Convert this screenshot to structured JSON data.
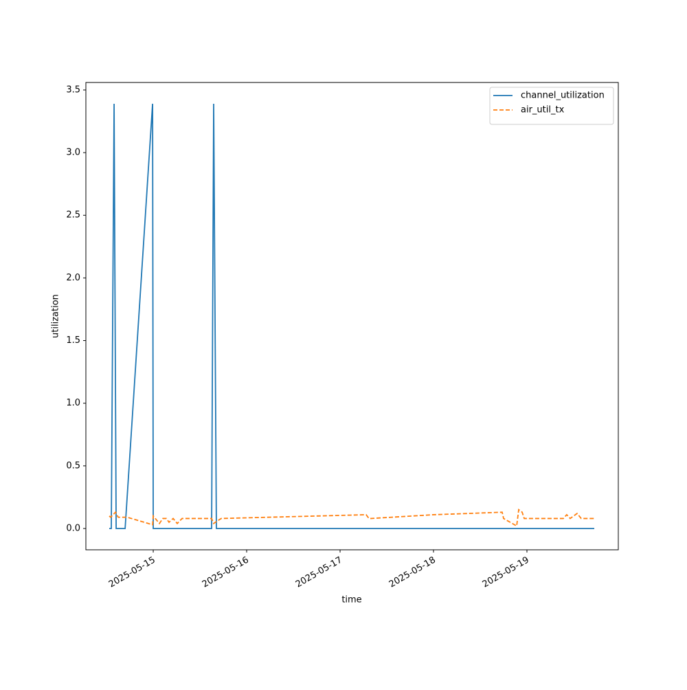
{
  "chart_data": {
    "type": "line",
    "xlabel": "time",
    "ylabel": "utilization",
    "series": [
      {
        "name": "channel_utilization",
        "color": "#1f77b4",
        "linestyle": "solid",
        "x": [
          14.529,
          14.551,
          14.581,
          14.603,
          14.699,
          14.993,
          15.0,
          15.625,
          15.647,
          15.676,
          19.721
        ],
        "values": [
          0,
          0,
          3.39,
          0,
          0,
          3.39,
          0,
          0,
          3.39,
          0,
          0
        ]
      },
      {
        "name": "air_util_tx",
        "color": "#ff7f0e",
        "linestyle": "dashed",
        "x": [
          14.529,
          14.544,
          14.596,
          14.625,
          14.721,
          14.993,
          15.0,
          15.066,
          15.103,
          15.14,
          15.169,
          15.213,
          15.257,
          15.309,
          15.625,
          15.647,
          15.684,
          15.728,
          17.279,
          17.309,
          17.331,
          18.0,
          18.735,
          18.75,
          18.89,
          18.912,
          18.949,
          18.971,
          19.39,
          19.426,
          19.463,
          19.537,
          19.581,
          19.721
        ],
        "values": [
          0.1,
          0.09,
          0.13,
          0.09,
          0.09,
          0.03,
          0.1,
          0.04,
          0.08,
          0.08,
          0.05,
          0.08,
          0.04,
          0.08,
          0.08,
          0.04,
          0.06,
          0.08,
          0.11,
          0.08,
          0.08,
          0.11,
          0.13,
          0.08,
          0.02,
          0.15,
          0.13,
          0.08,
          0.08,
          0.11,
          0.08,
          0.12,
          0.08,
          0.08
        ]
      }
    ],
    "xlim": [
      14.279,
      19.978
    ],
    "xticks": [
      {
        "value": 15,
        "label": "2025-05-15"
      },
      {
        "value": 16,
        "label": "2025-05-16"
      },
      {
        "value": 17,
        "label": "2025-05-17"
      },
      {
        "value": 18,
        "label": "2025-05-18"
      },
      {
        "value": 19,
        "label": "2025-05-19"
      }
    ],
    "ylim": [
      -0.17,
      3.56
    ],
    "yticks": [
      {
        "value": 0,
        "label": "0.0"
      },
      0.5,
      {
        "value": 1,
        "label": "1.0"
      },
      1.5,
      {
        "value": 2,
        "label": "2.0"
      },
      2.5,
      {
        "value": 3,
        "label": "3.0"
      },
      3.5
    ],
    "grid": false,
    "legend": "upper right"
  }
}
